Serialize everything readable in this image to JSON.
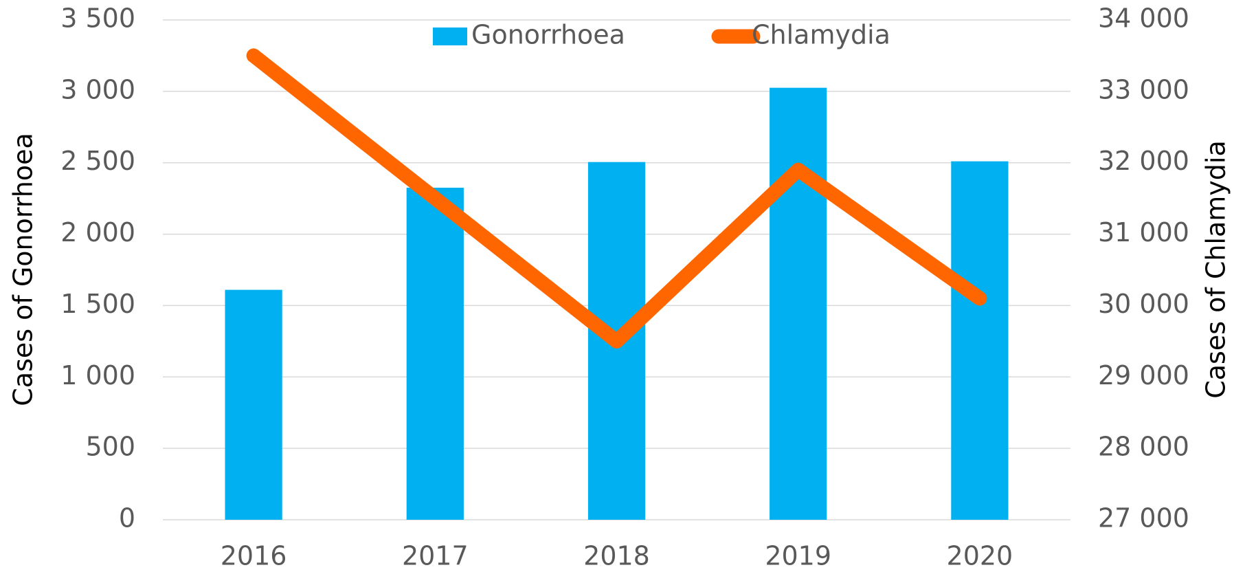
{
  "chart_data": {
    "type": "bar_line",
    "y_label": "Cases of Gonorrhoea",
    "y2_label": "Cases of Chlamydia",
    "categories": [
      "2016",
      "2017",
      "2018",
      "2019",
      "2020"
    ],
    "series": [
      {
        "name": "Gonorrhoea",
        "type": "bar",
        "color": "#00b0f0",
        "values": [
          1610,
          2325,
          2505,
          3025,
          2510
        ]
      },
      {
        "name": "Chlamydia",
        "type": "line",
        "axis": "y2",
        "color": "#ff6600",
        "values": [
          33500,
          31500,
          29500,
          31900,
          30100
        ]
      }
    ],
    "ylim": [
      0,
      3500
    ],
    "yticks": [
      0,
      500,
      {
        "value": 1000,
        "label": "1 000"
      },
      {
        "value": 1500,
        "label": "1 500"
      },
      {
        "value": 2000,
        "label": "2 000"
      },
      {
        "value": 2500,
        "label": "2 500"
      },
      {
        "value": 3000,
        "label": "3 000"
      },
      {
        "value": 3500,
        "label": "3 500"
      }
    ],
    "y2lim": [
      27000,
      34000
    ],
    "y2ticks": [
      {
        "value": 27000,
        "label": "27 000"
      },
      {
        "value": 28000,
        "label": "28 000"
      },
      {
        "value": 29000,
        "label": "29 000"
      },
      {
        "value": 30000,
        "label": "30 000"
      },
      {
        "value": 31000,
        "label": "31 000"
      },
      {
        "value": 32000,
        "label": "32 000"
      },
      {
        "value": 33000,
        "label": "33 000"
      },
      {
        "value": 34000,
        "label": "34 000"
      }
    ],
    "grid": true,
    "legend": "top"
  }
}
